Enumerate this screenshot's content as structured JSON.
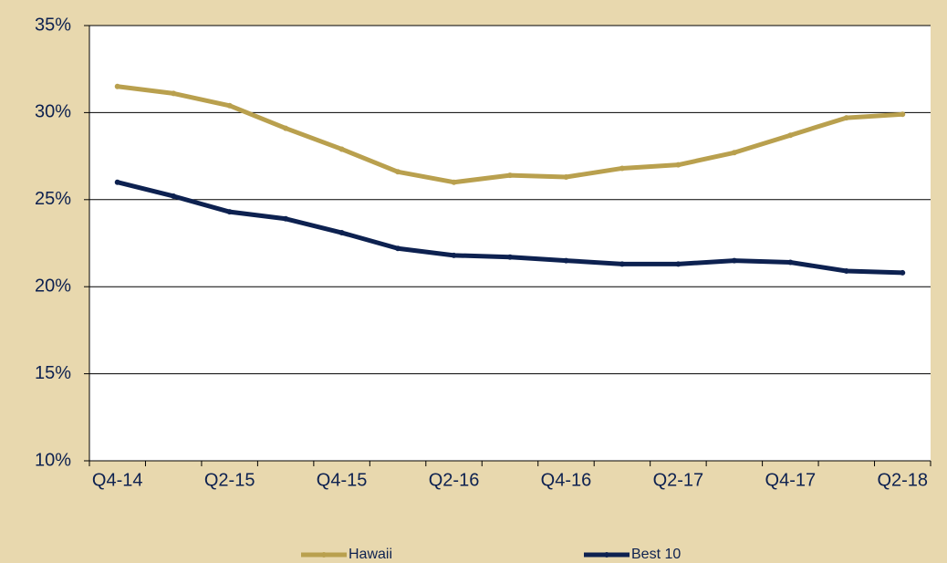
{
  "chart_data": {
    "type": "line",
    "categories": [
      "Q4-14",
      null,
      "Q2-15",
      null,
      "Q4-15",
      null,
      "Q2-16",
      null,
      "Q4-16",
      null,
      "Q2-17",
      null,
      "Q4-17",
      null,
      "Q2-18"
    ],
    "series": [
      {
        "name": "Hawaii",
        "color": "#b9a04e",
        "values": [
          31.5,
          31.1,
          30.4,
          29.1,
          27.9,
          26.6,
          26.0,
          26.4,
          26.3,
          26.8,
          27.0,
          27.7,
          28.7,
          29.7,
          29.9
        ]
      },
      {
        "name": "Best 10",
        "color": "#0d2150",
        "values": [
          26.0,
          25.2,
          24.3,
          23.9,
          23.1,
          22.2,
          21.8,
          21.7,
          21.5,
          21.3,
          21.3,
          21.5,
          21.4,
          20.9,
          20.8
        ]
      }
    ],
    "ylim": [
      10,
      35
    ],
    "yticks": [
      {
        "value": 10,
        "label": "10%"
      },
      {
        "value": 15,
        "label": "15%"
      },
      {
        "value": 20,
        "label": "20%"
      },
      {
        "value": 25,
        "label": "25%"
      },
      {
        "value": 30,
        "label": "30%"
      },
      {
        "value": 35,
        "label": "35%"
      }
    ],
    "grid": true,
    "legend": "bottom"
  }
}
